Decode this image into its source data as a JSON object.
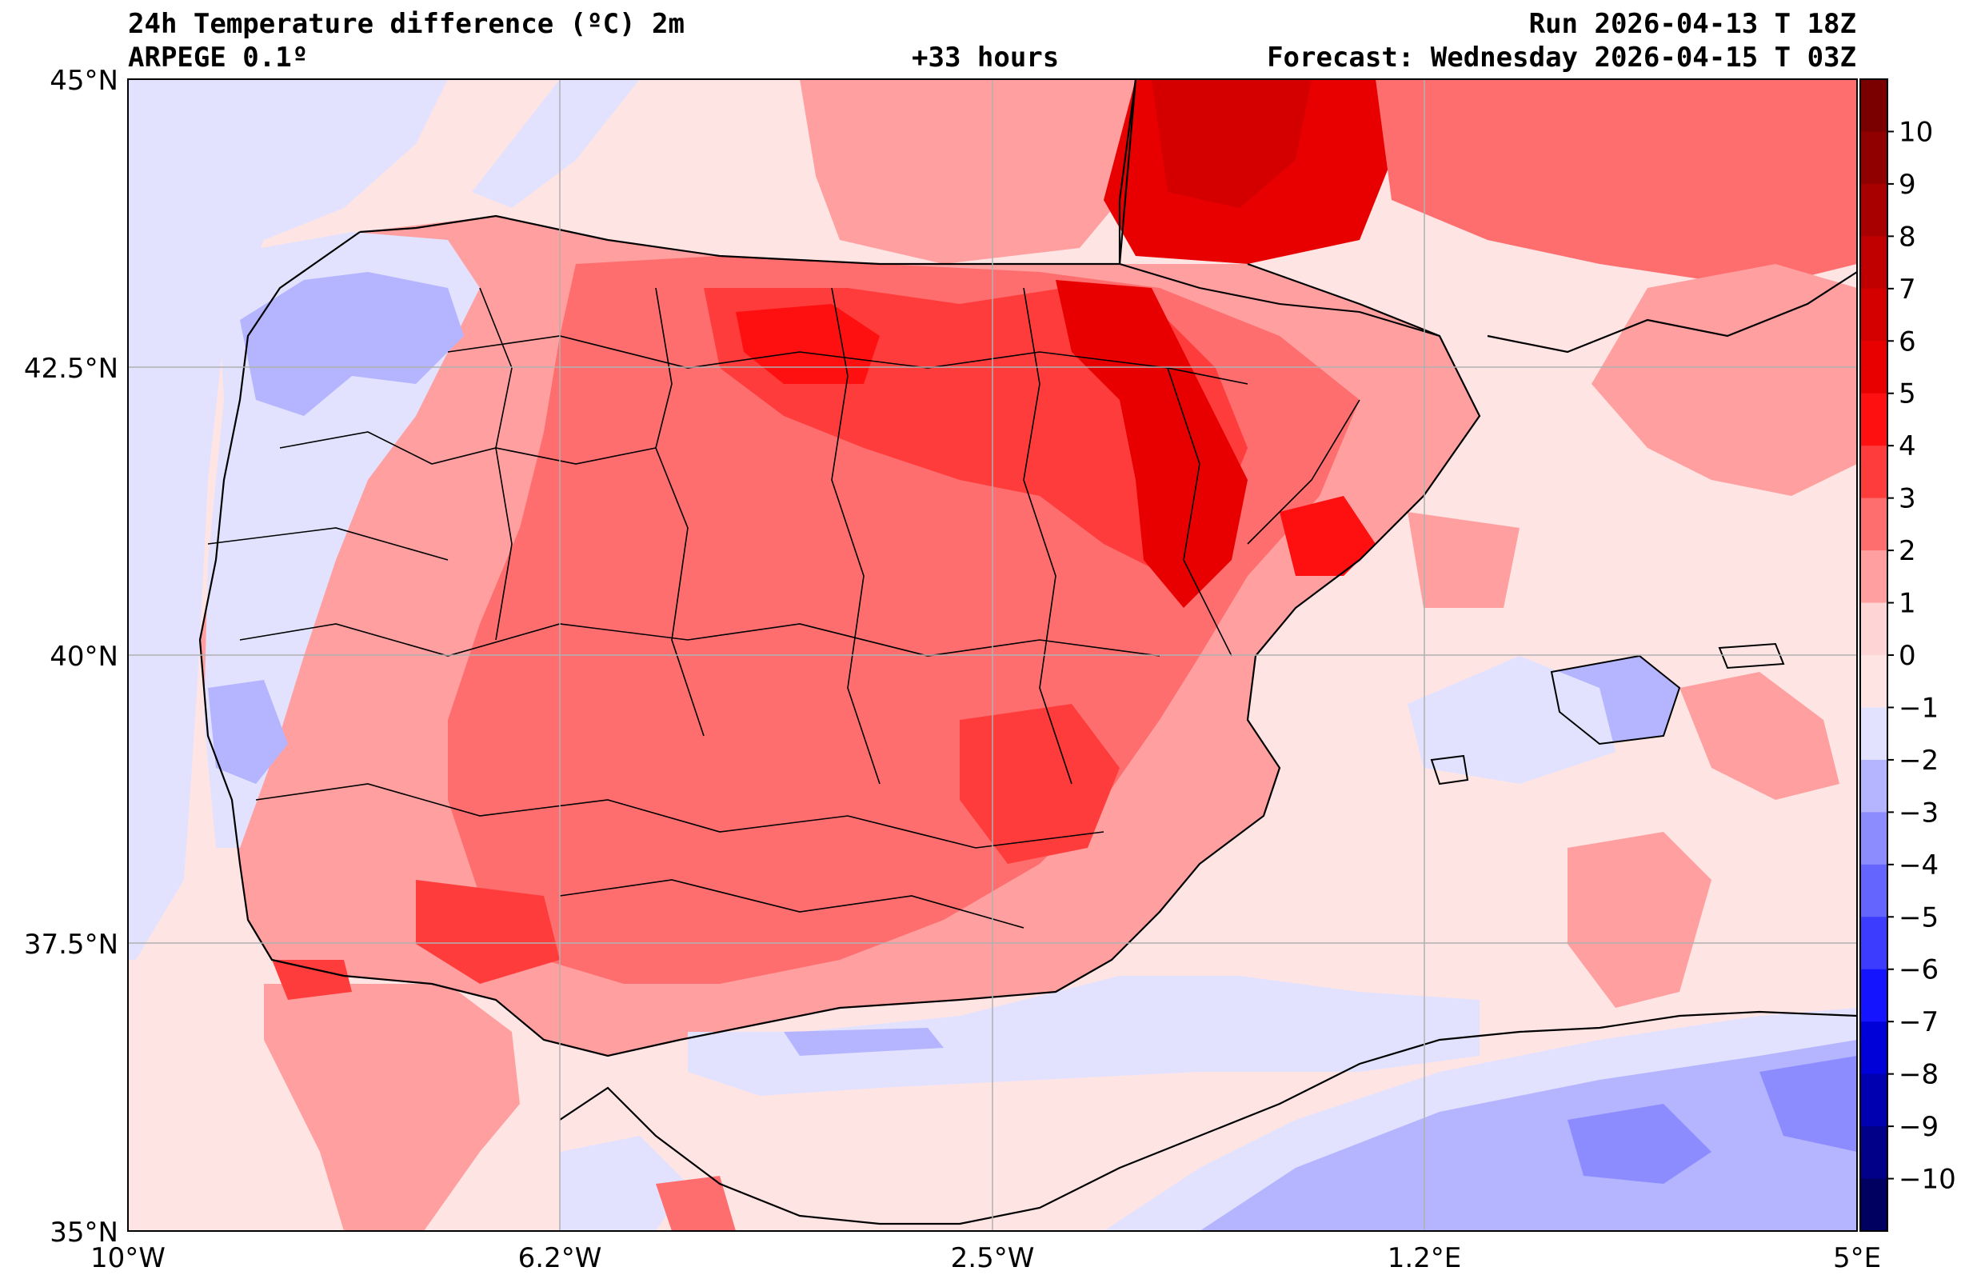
{
  "header": {
    "title": "24h Temperature difference (ºC) 2m",
    "model": "ARPEGE 0.1º",
    "lead_time": "+33 hours",
    "run": "Run 2026-04-13 T 18Z",
    "forecast": "Forecast: Wednesday 2026-04-15 T 03Z"
  },
  "axes": {
    "x_ticks": [
      "10°W",
      "6.2°W",
      "2.5°W",
      "1.2°E",
      "5°E"
    ],
    "y_ticks": [
      "45°N",
      "42.5°N",
      "40°N",
      "37.5°N",
      "35°N"
    ],
    "lon_values": [
      -10,
      -6.25,
      -2.5,
      1.25,
      5
    ],
    "lat_values": [
      45,
      42.5,
      40,
      37.5,
      35
    ]
  },
  "colorbar": {
    "tick_labels": [
      "10",
      "9",
      "8",
      "7",
      "6",
      "5",
      "4",
      "3",
      "2",
      "1",
      "0",
      "−1",
      "−2",
      "−3",
      "−4",
      "−5",
      "−6",
      "−7",
      "−8",
      "−9",
      "−10"
    ],
    "levels_top_to_bottom": [
      11,
      10,
      9,
      8,
      7,
      6,
      5,
      4,
      3,
      2,
      1,
      0,
      -1,
      -2,
      -3,
      -4,
      -5,
      -6,
      -7,
      -8,
      -9,
      -10,
      -11
    ],
    "colors_top_to_bottom": [
      "#7a0000",
      "#900000",
      "#a80000",
      "#c00000",
      "#d40000",
      "#e80000",
      "#ff1010",
      "#ff3c3c",
      "#ff6e6e",
      "#ff9f9f",
      "#ffd4d4",
      "#ffe4e4",
      "#e2e2ff",
      "#b4b4ff",
      "#8c8cff",
      "#6464ff",
      "#3c3cff",
      "#1414ff",
      "#0000d8",
      "#0000b0",
      "#000088",
      "#000060"
    ]
  },
  "map": {
    "extent": {
      "lon_min": -10,
      "lon_max": 5,
      "lat_min": 35,
      "lat_max": 45
    },
    "grid": true,
    "sea_background_color": "#ffe4e4",
    "land_base_color": "#ff9f9f",
    "coast_color": "#000000"
  }
}
